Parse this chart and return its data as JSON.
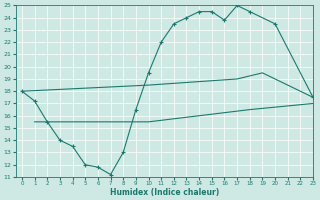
{
  "xlabel": "Humidex (Indice chaleur)",
  "xlim": [
    -0.5,
    23
  ],
  "ylim": [
    11,
    25
  ],
  "xticks": [
    0,
    1,
    2,
    3,
    4,
    5,
    6,
    7,
    8,
    9,
    10,
    11,
    12,
    13,
    14,
    15,
    16,
    17,
    18,
    19,
    20,
    21,
    22,
    23
  ],
  "yticks": [
    11,
    12,
    13,
    14,
    15,
    16,
    17,
    18,
    19,
    20,
    21,
    22,
    23,
    24,
    25
  ],
  "bg_color": "#cee8e4",
  "line_color": "#1a7a6e",
  "grid_color": "#ffffff",
  "curve_main": {
    "x": [
      0,
      1,
      2,
      3,
      4,
      5,
      6,
      7,
      8,
      9,
      10,
      11,
      12,
      13,
      14,
      15,
      16,
      17,
      18,
      20,
      23
    ],
    "y": [
      18.0,
      17.2,
      15.5,
      14.0,
      13.5,
      12.0,
      11.8,
      11.2,
      13.0,
      16.5,
      19.5,
      22.0,
      23.5,
      24.0,
      24.5,
      24.5,
      23.8,
      25.0,
      24.5,
      23.5,
      17.5
    ]
  },
  "curve_upper": {
    "x": [
      0,
      10,
      17,
      19,
      20,
      21,
      23
    ],
    "y": [
      18.0,
      18.5,
      19.0,
      19.5,
      19.0,
      18.5,
      17.5
    ]
  },
  "curve_lower": {
    "x": [
      1,
      5,
      10,
      14,
      18,
      20,
      23
    ],
    "y": [
      15.5,
      15.5,
      15.5,
      16.0,
      16.5,
      16.7,
      17.0
    ]
  }
}
